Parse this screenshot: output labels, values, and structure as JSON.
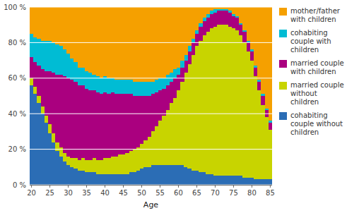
{
  "chart_data": {
    "type": "bar",
    "stacked": true,
    "x_label": "Age",
    "x": [
      20,
      21,
      22,
      23,
      24,
      25,
      26,
      27,
      28,
      29,
      30,
      31,
      32,
      33,
      34,
      35,
      36,
      37,
      38,
      39,
      40,
      41,
      42,
      43,
      44,
      45,
      46,
      47,
      48,
      49,
      50,
      51,
      52,
      53,
      54,
      55,
      56,
      57,
      58,
      59,
      60,
      61,
      62,
      63,
      64,
      65,
      66,
      67,
      68,
      69,
      70,
      71,
      72,
      73,
      74,
      75,
      76,
      77,
      78,
      79,
      80,
      81,
      82,
      83,
      84,
      85
    ],
    "xlim": [
      19.5,
      85.5
    ],
    "xticks": [
      20,
      25,
      30,
      35,
      40,
      45,
      50,
      55,
      60,
      65,
      70,
      75,
      80,
      85
    ],
    "ylim": [
      0,
      100
    ],
    "yticks": [
      {
        "value": 0,
        "label": "0 %"
      },
      {
        "value": 20,
        "label": "20 %"
      },
      {
        "value": 40,
        "label": "40 %"
      },
      {
        "value": 60,
        "label": "60 %"
      },
      {
        "value": 80,
        "label": "80 %"
      },
      {
        "value": 100,
        "label": "100 %"
      }
    ],
    "grid": true,
    "legend": "right",
    "series": [
      {
        "name": "cohabiting\ncouple without\nchildren",
        "color": "#2b6db5",
        "values": [
          56,
          51,
          46,
          40,
          35,
          29,
          24,
          19,
          16,
          13,
          11,
          10,
          9,
          8,
          8,
          7,
          7,
          7,
          6,
          6,
          6,
          6,
          6,
          6,
          6,
          6,
          6,
          7,
          7,
          8,
          9,
          10,
          10,
          11,
          11,
          11,
          11,
          11,
          11,
          11,
          11,
          11,
          10,
          9,
          8,
          8,
          7,
          7,
          6,
          6,
          5,
          5,
          5,
          5,
          5,
          5,
          5,
          5,
          4,
          4,
          4,
          3,
          3,
          3,
          3,
          3
        ]
      },
      {
        "name": "married couple\nwithout children",
        "color": "#c8d400",
        "values": [
          4,
          4,
          4,
          4,
          4,
          5,
          5,
          5,
          5,
          5,
          5,
          5,
          6,
          6,
          7,
          7,
          7,
          8,
          8,
          8,
          9,
          9,
          10,
          10,
          11,
          11,
          12,
          12,
          13,
          13,
          14,
          15,
          17,
          19,
          22,
          25,
          28,
          31,
          35,
          38,
          42,
          47,
          53,
          59,
          65,
          70,
          74,
          77,
          80,
          82,
          84,
          85,
          85,
          85,
          84,
          83,
          82,
          79,
          76,
          71,
          66,
          58,
          50,
          42,
          35,
          28
        ]
      },
      {
        "name": "married couple\nwith children",
        "color": "#aa007f",
        "values": [
          12,
          14,
          17,
          21,
          25,
          30,
          34,
          38,
          41,
          43,
          44,
          44,
          43,
          42,
          41,
          40,
          39,
          38,
          38,
          37,
          37,
          36,
          36,
          35,
          34,
          34,
          33,
          32,
          30,
          29,
          27,
          25,
          23,
          21,
          19,
          17,
          15,
          14,
          12,
          11,
          9,
          8,
          7,
          7,
          7,
          7,
          8,
          8,
          8,
          8,
          8,
          8,
          8,
          8,
          8,
          7,
          7,
          6,
          6,
          5,
          5,
          5,
          5,
          5,
          4,
          4
        ]
      },
      {
        "name": "cohabiting\ncouple with\nchildren",
        "color": "#00bcd4",
        "values": [
          13,
          14,
          15,
          16,
          17,
          17,
          17,
          17,
          16,
          15,
          14,
          12,
          11,
          10,
          10,
          10,
          10,
          9,
          9,
          9,
          9,
          9,
          8,
          8,
          8,
          8,
          8,
          8,
          8,
          8,
          8,
          8,
          8,
          7,
          7,
          7,
          6,
          6,
          5,
          5,
          4,
          4,
          3,
          3,
          2,
          2,
          2,
          2,
          2,
          2,
          2,
          1,
          1,
          1,
          1,
          1,
          1,
          1,
          1,
          1,
          1,
          1,
          1,
          1,
          1,
          1
        ]
      },
      {
        "name": "mother/father\nwith children",
        "color": "#f5a000",
        "values": [
          15,
          17,
          18,
          19,
          19,
          19,
          20,
          21,
          22,
          24,
          26,
          29,
          31,
          34,
          34,
          36,
          37,
          38,
          39,
          40,
          39,
          40,
          40,
          41,
          41,
          41,
          41,
          41,
          42,
          42,
          42,
          42,
          42,
          42,
          41,
          40,
          40,
          38,
          37,
          35,
          34,
          30,
          27,
          22,
          18,
          13,
          9,
          6,
          4,
          2,
          1,
          1,
          1,
          1,
          2,
          4,
          5,
          9,
          13,
          19,
          24,
          33,
          41,
          49,
          57,
          64
        ]
      }
    ]
  }
}
